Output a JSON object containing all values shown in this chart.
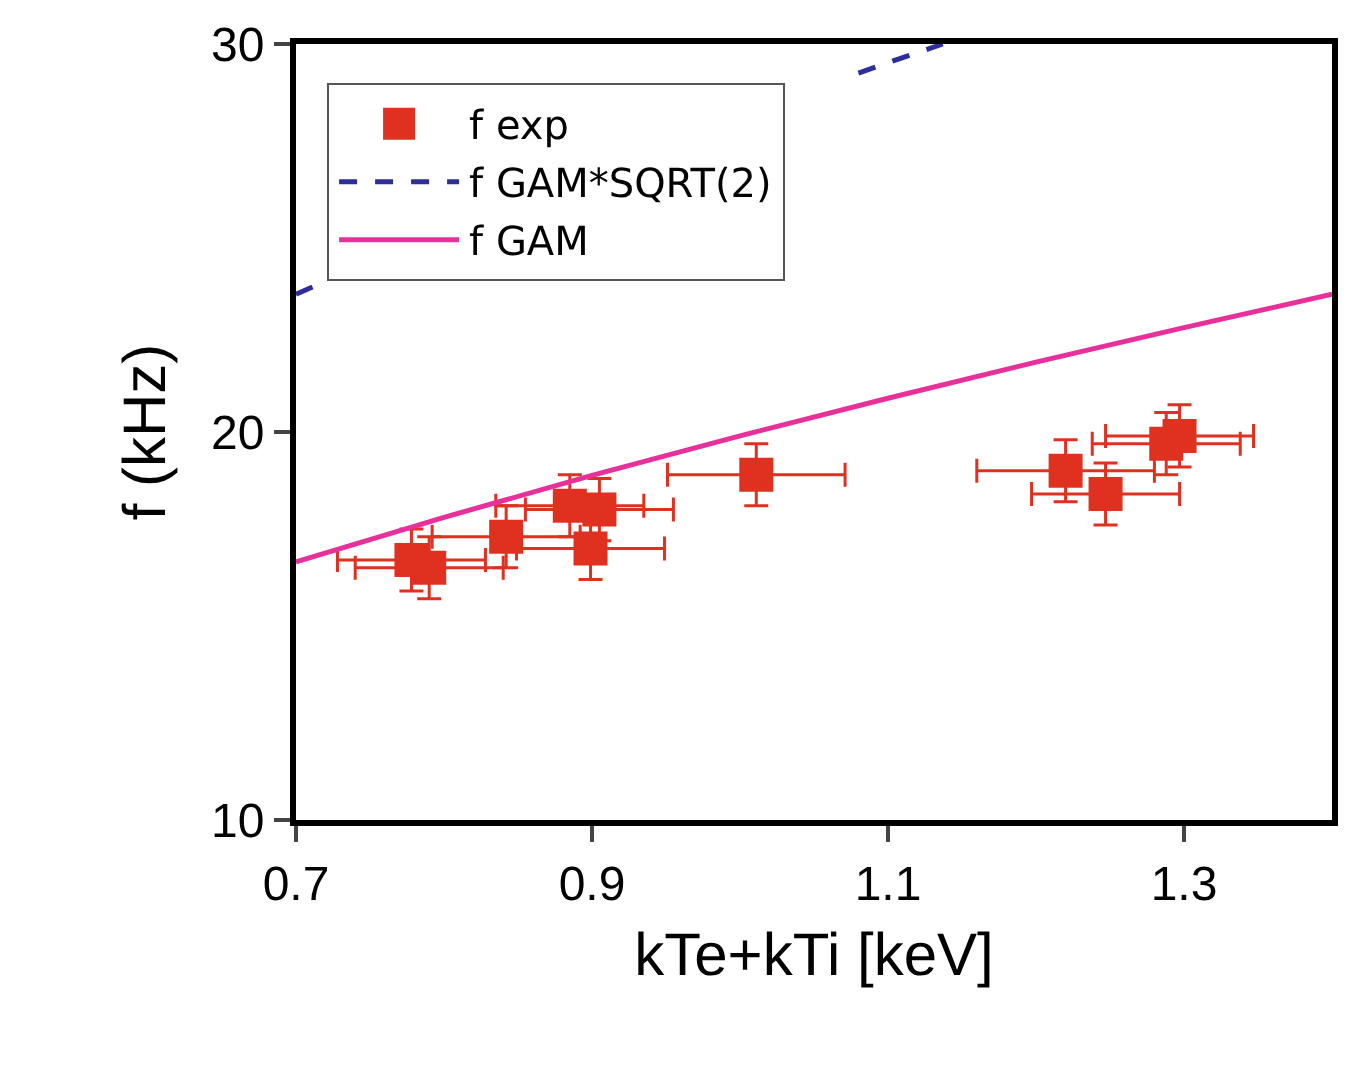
{
  "chart_data": {
    "type": "scatter",
    "xlabel": "kTe+kTi [keV]",
    "ylabel": "f (kHz)",
    "xlim": [
      0.7,
      1.4
    ],
    "ylim": [
      10,
      30
    ],
    "xticks": [
      0.7,
      0.9,
      1.1,
      1.3
    ],
    "yticks": [
      10,
      20,
      30
    ],
    "grid": false,
    "legend": "top left",
    "series": [
      {
        "name": "f exp",
        "marker": "square",
        "color": "#e03020",
        "x": [
          0.778,
          0.79,
          0.842,
          0.885,
          0.905,
          0.899,
          1.011,
          1.22,
          1.247,
          1.288,
          1.297
        ],
        "values": [
          16.7,
          16.5,
          17.3,
          18.1,
          18.0,
          17.0,
          18.9,
          19.0,
          18.4,
          19.7,
          19.9
        ],
        "errors": [
          0.8,
          0.8,
          0.8,
          0.8,
          0.8,
          0.8,
          0.8,
          0.8,
          0.8,
          0.8,
          0.8
        ],
        "xerrors": [
          0.05,
          0.05,
          0.05,
          0.05,
          0.05,
          0.05,
          0.06,
          0.06,
          0.05,
          0.05,
          0.05
        ]
      },
      {
        "name": "f GAM*SQRT(2)",
        "type": "line",
        "line_style": "dashed",
        "color": "#2e2e9a",
        "x": [
          0.7,
          0.715,
          0.8,
          0.9,
          1.0,
          1.08,
          1.1,
          1.137
        ],
        "values": [
          23.55,
          23.8,
          null,
          null,
          null,
          29.25,
          29.52,
          30
        ]
      },
      {
        "name": "f GAM",
        "type": "line",
        "line_style": "solid",
        "color": "#e8309a",
        "x": [
          0.7,
          0.8,
          0.9,
          1.0,
          1.1,
          1.2,
          1.3,
          1.4
        ],
        "values": [
          16.65,
          17.8,
          18.88,
          19.9,
          20.87,
          21.8,
          22.69,
          23.55
        ]
      }
    ]
  }
}
